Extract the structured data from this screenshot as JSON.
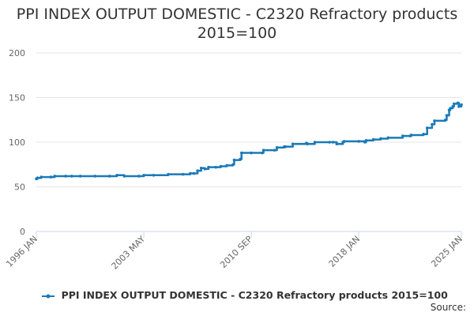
{
  "chart_data": {
    "type": "line",
    "title_line1": "PPI INDEX OUTPUT DOMESTIC - C2320 Refractory products",
    "title_line2": "2015=100",
    "xlabel": "",
    "ylabel": "",
    "ylim": [
      0,
      200
    ],
    "yticks": [
      0,
      50,
      100,
      150,
      200
    ],
    "xlim": [
      "1996 JAN",
      "2025 JAN"
    ],
    "xticks": [
      "1996 JAN",
      "2003 MAY",
      "2010 SEP",
      "2018 JAN",
      "2025 JAN"
    ],
    "grid": "horizontal",
    "legend_position": "bottom",
    "color": "#1a7ab8",
    "source_label": "Source:",
    "series": [
      {
        "name": "PPI INDEX OUTPUT DOMESTIC - C2320 Refractory products 2015=100",
        "points": [
          [
            "1996 JAN",
            59
          ],
          [
            "1996 FEB",
            60
          ],
          [
            "1996 MAY",
            61
          ],
          [
            "1997 JAN",
            61
          ],
          [
            "1997 APR",
            62
          ],
          [
            "1998 JAN",
            62
          ],
          [
            "1998 JUN",
            62
          ],
          [
            "1999 JAN",
            62
          ],
          [
            "2000 JAN",
            62
          ],
          [
            "2001 JAN",
            62
          ],
          [
            "2001 JUL",
            63
          ],
          [
            "2002 JAN",
            62
          ],
          [
            "2003 JAN",
            62
          ],
          [
            "2003 MAY",
            63
          ],
          [
            "2004 JAN",
            63
          ],
          [
            "2005 JAN",
            64
          ],
          [
            "2006 JAN",
            64
          ],
          [
            "2006 JUL",
            65
          ],
          [
            "2006 OCT",
            65
          ],
          [
            "2007 JAN",
            68
          ],
          [
            "2007 APR",
            71
          ],
          [
            "2007 JUL",
            70
          ],
          [
            "2007 OCT",
            72
          ],
          [
            "2008 APR",
            72
          ],
          [
            "2008 AUG",
            73
          ],
          [
            "2009 JAN",
            74
          ],
          [
            "2009 JUN",
            75
          ],
          [
            "2009 JUL",
            80
          ],
          [
            "2009 DEC",
            81
          ],
          [
            "2010 JAN",
            88
          ],
          [
            "2010 SEP",
            88
          ],
          [
            "2011 JUN",
            88
          ],
          [
            "2011 JUL",
            91
          ],
          [
            "2012 APR",
            91
          ],
          [
            "2012 JUN",
            94
          ],
          [
            "2012 DEC",
            95
          ],
          [
            "2013 JAN",
            95
          ],
          [
            "2013 JUL",
            98
          ],
          [
            "2014 JUN",
            99
          ],
          [
            "2014 JUL",
            98
          ],
          [
            "2015 JAN",
            100
          ],
          [
            "2016 JAN",
            100
          ],
          [
            "2016 APR",
            100
          ],
          [
            "2016 JUL",
            98
          ],
          [
            "2016 DEC",
            100
          ],
          [
            "2017 JAN",
            101
          ],
          [
            "2018 JAN",
            101
          ],
          [
            "2018 JUN",
            100
          ],
          [
            "2018 JUL",
            102
          ],
          [
            "2019 JAN",
            103
          ],
          [
            "2019 JUL",
            104
          ],
          [
            "2020 JAN",
            105
          ],
          [
            "2021 JAN",
            107
          ],
          [
            "2021 JUL",
            107
          ],
          [
            "2021 AUG",
            108
          ],
          [
            "2022 JUN",
            109
          ],
          [
            "2022 SEP",
            116
          ],
          [
            "2023 JAN",
            120
          ],
          [
            "2023 MAR",
            124
          ],
          [
            "2023 DEC",
            125
          ],
          [
            "2024 JAN",
            130
          ],
          [
            "2024 MAR",
            136
          ],
          [
            "2024 APR",
            138
          ],
          [
            "2024 JUN",
            140
          ],
          [
            "2024 JUL",
            143
          ],
          [
            "2024 OCT",
            144
          ],
          [
            "2024 NOV",
            140
          ],
          [
            "2025 JAN",
            142
          ]
        ]
      }
    ]
  }
}
